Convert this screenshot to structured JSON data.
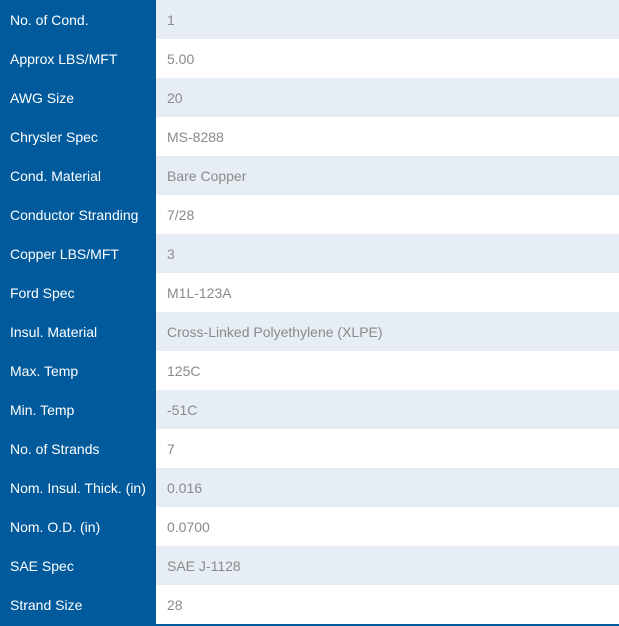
{
  "specs": [
    {
      "label": "No. of Cond.",
      "value": "1"
    },
    {
      "label": "Approx LBS/MFT",
      "value": "5.00"
    },
    {
      "label": "AWG Size",
      "value": "20"
    },
    {
      "label": "Chrysler Spec",
      "value": "MS-8288"
    },
    {
      "label": "Cond. Material",
      "value": "Bare Copper"
    },
    {
      "label": "Conductor Stranding",
      "value": "7/28"
    },
    {
      "label": "Copper LBS/MFT",
      "value": "3"
    },
    {
      "label": "Ford Spec",
      "value": "M1L-123A"
    },
    {
      "label": "Insul. Material",
      "value": "Cross-Linked Polyethylene (XLPE)"
    },
    {
      "label": "Max. Temp",
      "value": "125C"
    },
    {
      "label": "Min. Temp",
      "value": "-51C"
    },
    {
      "label": "No. of Strands",
      "value": "7"
    },
    {
      "label": "Nom. Insul. Thick. (in)",
      "value": "0.016"
    },
    {
      "label": "Nom. O.D. (in)",
      "value": "0.0700"
    },
    {
      "label": "SAE Spec",
      "value": "SAE J-1128"
    },
    {
      "label": "Strand Size",
      "value": "28"
    }
  ]
}
